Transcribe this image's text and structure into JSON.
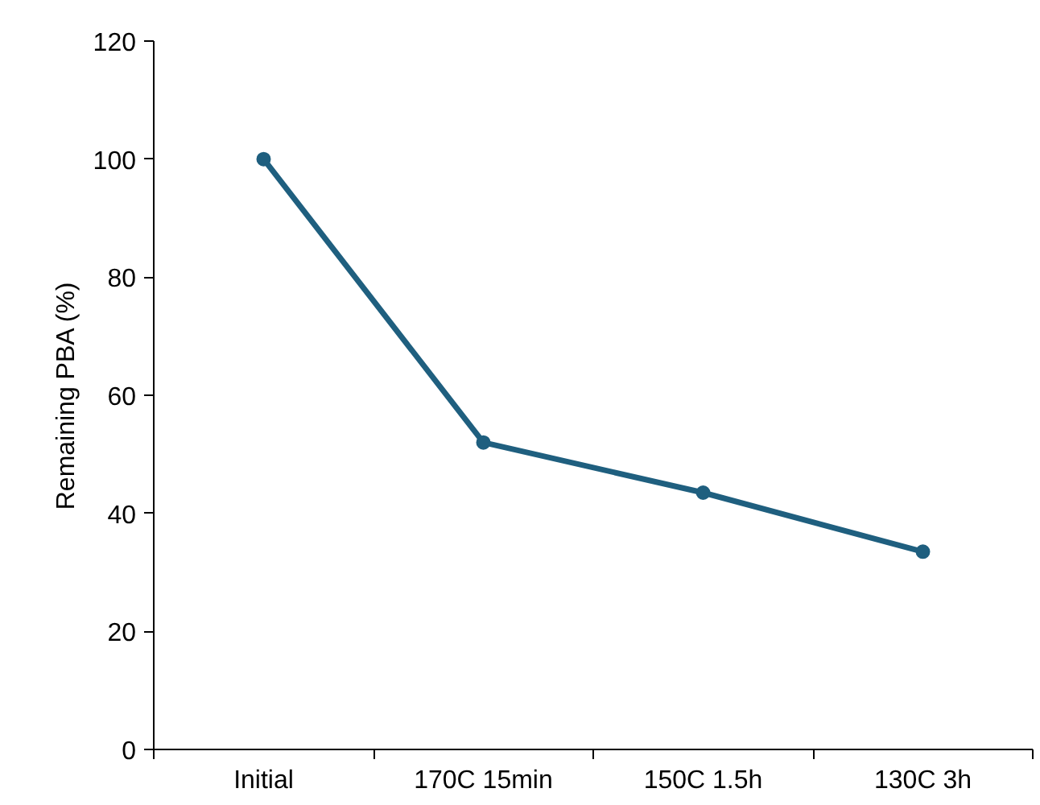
{
  "chart_data": {
    "type": "line",
    "ylabel": "Remaining PBA (%)",
    "categories": [
      "Initial",
      "170C 15min",
      "150C 1.5h",
      "130C 3h"
    ],
    "series": [
      {
        "color": "#1f5f7f",
        "values": [
          100,
          52,
          43.5,
          33.5
        ]
      }
    ],
    "ylim": [
      0,
      120
    ],
    "yticks": [
      0,
      20,
      40,
      60,
      80,
      100,
      120
    ],
    "grid": false,
    "marker": "circle",
    "line_style": "solid"
  }
}
